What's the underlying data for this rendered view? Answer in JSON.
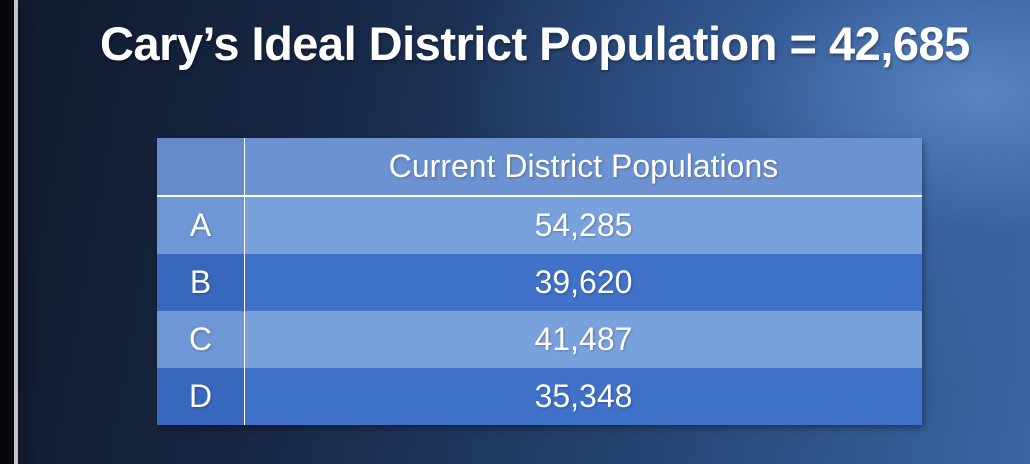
{
  "slide": {
    "title": "Cary’s Ideal District Population = 42,685"
  },
  "table": {
    "header_label": "",
    "header_value": "Current District Populations",
    "rows": [
      {
        "district": "A",
        "population": "54,285"
      },
      {
        "district": "B",
        "population": "39,620"
      },
      {
        "district": "C",
        "population": "41,487"
      },
      {
        "district": "D",
        "population": "35,348"
      }
    ]
  },
  "colors": {
    "row_light": "#79a2dd",
    "row_dark": "#3f72c8",
    "header": "#6c92d1",
    "text": "#ffffff"
  }
}
